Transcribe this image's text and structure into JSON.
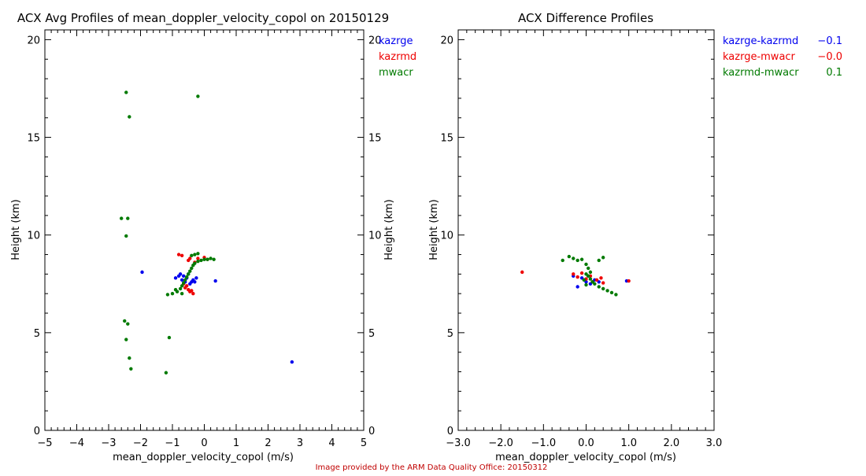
{
  "footer": {
    "credit": "Image provided by the ARM Data Quality Office: 20150312"
  },
  "colors": {
    "kazrge": "#0000ee",
    "kazrmd": "#ee0000",
    "mwacr": "#007a00",
    "credit": "#c00000"
  },
  "chart_data": [
    {
      "type": "scatter",
      "title": "ACX Avg Profiles of mean_doppler_velocity_copol on 20150129",
      "xlabel": "mean_doppler_velocity_copol (m/s)",
      "ylabel": "Height (km)",
      "ylabel_right": "Height (km)",
      "xlim": [
        -5,
        5
      ],
      "ylim": [
        0,
        20.5
      ],
      "xticks": [
        -5,
        -4,
        -3,
        -2,
        -1,
        0,
        1,
        2,
        3,
        4,
        5
      ],
      "xtick_labels": [
        "−5",
        "−4",
        "−3",
        "−2",
        "−1",
        "0",
        "1",
        "2",
        "3",
        "4",
        "5"
      ],
      "yticks": [
        0,
        5,
        10,
        15,
        20
      ],
      "ytick_labels": [
        "0",
        "5",
        "10",
        "15",
        "20"
      ],
      "legend_placement": "top-right, outside",
      "legend": [
        {
          "label": "kazrge",
          "color": "#0000ee"
        },
        {
          "label": "kazrmd",
          "color": "#ee0000"
        },
        {
          "label": "mwacr",
          "color": "#007a00"
        }
      ],
      "series": [
        {
          "name": "kazrge",
          "color": "#0000ee",
          "points": [
            [
              -1.95,
              8.1
            ],
            [
              -0.9,
              7.8
            ],
            [
              -0.8,
              7.9
            ],
            [
              -0.75,
              8.0
            ],
            [
              -0.7,
              7.7
            ],
            [
              -0.65,
              7.9
            ],
            [
              -0.6,
              7.6
            ],
            [
              -0.55,
              7.8
            ],
            [
              -0.5,
              8.0
            ],
            [
              -0.45,
              7.5
            ],
            [
              -0.4,
              7.6
            ],
            [
              -0.35,
              7.7
            ],
            [
              -0.3,
              7.6
            ],
            [
              -0.25,
              7.8
            ],
            [
              0.35,
              7.65
            ],
            [
              2.75,
              3.5
            ]
          ]
        },
        {
          "name": "kazrmd",
          "color": "#ee0000",
          "points": [
            [
              -0.8,
              9.0
            ],
            [
              -0.7,
              8.95
            ],
            [
              -0.5,
              8.7
            ],
            [
              -0.45,
              8.8
            ],
            [
              -0.3,
              8.6
            ],
            [
              -0.2,
              8.8
            ],
            [
              0.0,
              8.85
            ],
            [
              0.1,
              8.75
            ],
            [
              -0.6,
              7.3
            ],
            [
              -0.5,
              7.2
            ],
            [
              -0.45,
              7.1
            ],
            [
              -0.4,
              7.15
            ],
            [
              -0.35,
              7.0
            ],
            [
              -0.55,
              7.4
            ],
            [
              -0.65,
              7.5
            ]
          ]
        },
        {
          "name": "mwacr",
          "color": "#007a00",
          "points": [
            [
              -2.45,
              17.3
            ],
            [
              -0.2,
              17.1
            ],
            [
              -2.35,
              16.05
            ],
            [
              -2.6,
              10.85
            ],
            [
              -2.4,
              10.85
            ],
            [
              -2.45,
              9.95
            ],
            [
              -2.5,
              5.6
            ],
            [
              -2.4,
              5.45
            ],
            [
              -2.45,
              4.65
            ],
            [
              -1.1,
              4.75
            ],
            [
              -2.35,
              3.7
            ],
            [
              -2.3,
              3.15
            ],
            [
              -1.2,
              2.95
            ],
            [
              -1.15,
              6.95
            ],
            [
              -1.0,
              7.0
            ],
            [
              -0.85,
              7.1
            ],
            [
              -0.75,
              7.25
            ],
            [
              -0.7,
              7.4
            ],
            [
              -0.65,
              7.55
            ],
            [
              -0.6,
              7.7
            ],
            [
              -0.55,
              7.85
            ],
            [
              -0.5,
              8.0
            ],
            [
              -0.45,
              8.15
            ],
            [
              -0.4,
              8.3
            ],
            [
              -0.35,
              8.45
            ],
            [
              -0.3,
              8.55
            ],
            [
              -0.2,
              8.65
            ],
            [
              -0.1,
              8.7
            ],
            [
              0.0,
              8.75
            ],
            [
              0.1,
              8.75
            ],
            [
              0.2,
              8.8
            ],
            [
              0.3,
              8.75
            ],
            [
              -0.3,
              9.0
            ],
            [
              -0.2,
              9.05
            ],
            [
              -0.4,
              8.95
            ],
            [
              -0.7,
              7.0
            ],
            [
              -0.9,
              7.2
            ]
          ]
        }
      ]
    },
    {
      "type": "scatter",
      "title": "ACX Difference Profiles",
      "xlabel": "mean_doppler_velocity_copol (m/s)",
      "ylabel": "Height (km)",
      "xlim": [
        -3,
        3
      ],
      "ylim": [
        0,
        20.5
      ],
      "xticks": [
        -3,
        -2,
        -1,
        0,
        1,
        2,
        3
      ],
      "xtick_labels": [
        "−3.0",
        "−2.0",
        "−1.0",
        "0.0",
        "1.0",
        "2.0",
        "3.0"
      ],
      "yticks": [
        0,
        5,
        10,
        15,
        20
      ],
      "ytick_labels": [
        "0",
        "5",
        "10",
        "15",
        "20"
      ],
      "legend_placement": "top-right, outside",
      "legend": [
        {
          "label": "kazrge-kazrmd",
          "value": "−0.1",
          "color": "#0000ee"
        },
        {
          "label": "kazrge-mwacr",
          "value": "−0.0",
          "color": "#ee0000"
        },
        {
          "label": "kazrmd-mwacr",
          "value": "0.1",
          "color": "#007a00"
        }
      ],
      "series": [
        {
          "name": "kazrge-kazrmd",
          "color": "#0000ee",
          "points": [
            [
              -0.3,
              7.9
            ],
            [
              -0.2,
              7.35
            ],
            [
              -0.1,
              7.8
            ],
            [
              0.0,
              7.6
            ],
            [
              0.05,
              7.9
            ],
            [
              0.1,
              7.5
            ],
            [
              0.2,
              7.7
            ],
            [
              0.3,
              7.6
            ],
            [
              0.95,
              7.65
            ]
          ]
        },
        {
          "name": "kazrge-mwacr",
          "color": "#ee0000",
          "points": [
            [
              -1.5,
              8.1
            ],
            [
              -0.3,
              8.0
            ],
            [
              -0.2,
              7.85
            ],
            [
              -0.1,
              8.05
            ],
            [
              0.0,
              7.75
            ],
            [
              0.1,
              7.9
            ],
            [
              0.15,
              7.6
            ],
            [
              0.25,
              7.7
            ],
            [
              0.35,
              7.8
            ],
            [
              0.4,
              7.55
            ],
            [
              1.0,
              7.65
            ]
          ]
        },
        {
          "name": "kazrmd-mwacr",
          "color": "#007a00",
          "points": [
            [
              -0.55,
              8.7
            ],
            [
              -0.4,
              8.9
            ],
            [
              -0.3,
              8.8
            ],
            [
              -0.2,
              8.7
            ],
            [
              -0.1,
              8.75
            ],
            [
              0.0,
              8.5
            ],
            [
              0.05,
              8.3
            ],
            [
              0.1,
              8.1
            ],
            [
              0.4,
              8.85
            ],
            [
              0.3,
              8.7
            ],
            [
              0.0,
              8.0
            ],
            [
              0.05,
              7.9
            ],
            [
              0.1,
              7.75
            ],
            [
              0.15,
              7.6
            ],
            [
              0.2,
              7.5
            ],
            [
              0.3,
              7.35
            ],
            [
              0.4,
              7.25
            ],
            [
              0.5,
              7.15
            ],
            [
              0.6,
              7.05
            ],
            [
              0.7,
              6.95
            ],
            [
              -0.05,
              7.7
            ],
            [
              0.0,
              7.45
            ]
          ]
        }
      ]
    }
  ]
}
